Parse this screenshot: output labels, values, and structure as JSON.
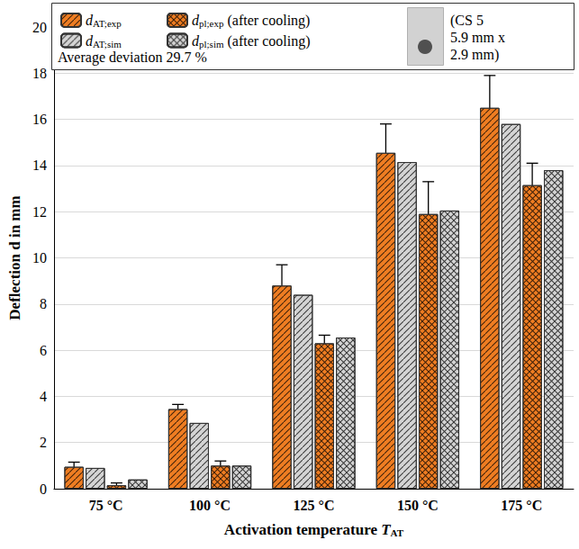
{
  "chart_data": {
    "type": "bar",
    "categories": [
      "75 °C",
      "100 °C",
      "125 °C",
      "150 °C",
      "175 °C"
    ],
    "x_label": "Activation temperature TAT",
    "y_label": "Deflection d in mm",
    "ylim": [
      0,
      20
    ],
    "yticks": [
      0,
      2,
      4,
      6,
      8,
      10,
      12,
      14,
      16,
      18,
      20
    ],
    "grid": true,
    "legend": "top",
    "annotations": [
      "Average deviation 29.7 %",
      "(CS 5\n5.9 mm x\n2.9 mm)"
    ],
    "series": [
      {
        "name": "dAT;exp",
        "color": "#ef7d22",
        "marker": "hatch",
        "values": [
          0.95,
          3.45,
          8.8,
          14.55,
          16.5
        ],
        "errors": [
          0.2,
          0.2,
          0.9,
          1.25,
          1.4
        ]
      },
      {
        "name": "dAT;sim",
        "color": "#d4d4d4",
        "marker": "hatch",
        "values": [
          0.9,
          2.85,
          8.4,
          14.15,
          15.8
        ]
      },
      {
        "name": "dpl;exp (after cooling)",
        "color": "#ef7d22",
        "marker": "crosshatch",
        "values": [
          0.15,
          1.0,
          6.3,
          11.9,
          13.15
        ],
        "errors": [
          0.1,
          0.2,
          0.35,
          1.4,
          0.95
        ]
      },
      {
        "name": "dpl;sim (after cooling)",
        "color": "#d4d4d4",
        "marker": "crosshatch",
        "values": [
          0.4,
          1.0,
          6.55,
          12.05,
          13.8
        ]
      }
    ]
  }
}
